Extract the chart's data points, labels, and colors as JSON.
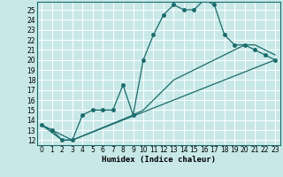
{
  "title": "",
  "xlabel": "Humidex (Indice chaleur)",
  "bg_color": "#c8e8e8",
  "grid_color": "#ffffff",
  "line_color": "#1a6b6b",
  "xlim": [
    -0.5,
    23.5
  ],
  "ylim": [
    11.5,
    25.8
  ],
  "xticks": [
    0,
    1,
    2,
    3,
    4,
    5,
    6,
    7,
    8,
    9,
    10,
    11,
    12,
    13,
    14,
    15,
    16,
    17,
    18,
    19,
    20,
    21,
    22,
    23
  ],
  "yticks": [
    12,
    13,
    14,
    15,
    16,
    17,
    18,
    19,
    20,
    21,
    22,
    23,
    24,
    25
  ],
  "line1_x": [
    0,
    1,
    2,
    3,
    4,
    5,
    6,
    7,
    8,
    9,
    10,
    11,
    12,
    13,
    14,
    15,
    16,
    17,
    18,
    19,
    20,
    21,
    22,
    23
  ],
  "line1_y": [
    13.5,
    13.0,
    12.0,
    12.0,
    14.5,
    15.0,
    15.0,
    15.0,
    17.5,
    14.5,
    20.0,
    22.5,
    24.5,
    25.5,
    25.0,
    25.0,
    26.0,
    25.5,
    22.5,
    21.5,
    21.5,
    21.0,
    20.5,
    20.0
  ],
  "line2_x": [
    0,
    2,
    3,
    23
  ],
  "line2_y": [
    13.5,
    12.0,
    12.0,
    20.0
  ],
  "line3_x": [
    0,
    3,
    9,
    10,
    11,
    12,
    13,
    14,
    15,
    16,
    17,
    18,
    19,
    20,
    21,
    22,
    23
  ],
  "line3_y": [
    13.5,
    12.0,
    14.5,
    15.0,
    16.0,
    17.0,
    18.0,
    18.5,
    19.0,
    19.5,
    20.0,
    20.5,
    21.0,
    21.5,
    21.5,
    21.0,
    20.5
  ],
  "tick_fontsize": 5.5,
  "xlabel_fontsize": 6.5
}
